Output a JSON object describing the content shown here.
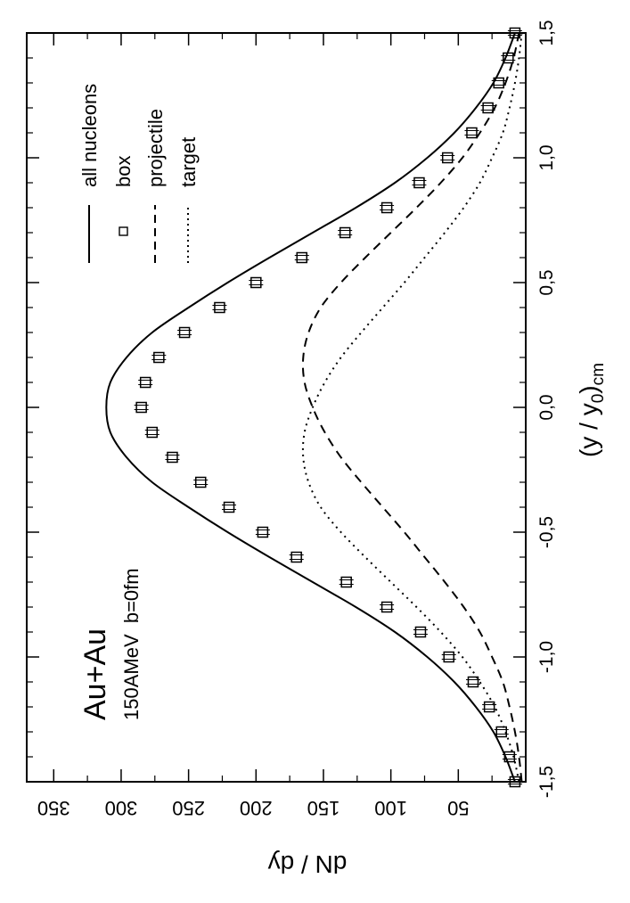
{
  "chart_data": {
    "type": "line",
    "orientation": "rotated-90-ccw",
    "xlabel_main": "(y / y",
    "xlabel_sub0": "0",
    "xlabel_paren": ")",
    "xlabel_subcm": "cm",
    "ylabel": "dN / dy",
    "xlim": [
      -1.5,
      1.5
    ],
    "ylim": [
      0,
      370
    ],
    "x_ticks": [
      {
        "value": -1.5,
        "label": "-1,5"
      },
      {
        "value": -1.0,
        "label": "-1,0"
      },
      {
        "value": -0.5,
        "label": "-0,5"
      },
      {
        "value": 0.0,
        "label": "0,0"
      },
      {
        "value": 0.5,
        "label": "0,5"
      },
      {
        "value": 1.0,
        "label": "1,0"
      },
      {
        "value": 1.5,
        "label": "1,5"
      }
    ],
    "y_ticks": [
      {
        "value": 50,
        "label": "50"
      },
      {
        "value": 100,
        "label": "100"
      },
      {
        "value": 150,
        "label": "150"
      },
      {
        "value": 200,
        "label": "200"
      },
      {
        "value": 250,
        "label": "250"
      },
      {
        "value": 300,
        "label": "300"
      },
      {
        "value": 350,
        "label": "350"
      }
    ],
    "annotation_system": "Au+Au",
    "annotation_conditions": "150AMeV  b=0fm",
    "legend": [
      {
        "label": "all nucleons",
        "style": "solid"
      },
      {
        "label": "box",
        "style": "marker"
      },
      {
        "label": "projectile",
        "style": "dashed"
      },
      {
        "label": "target",
        "style": "dotted"
      }
    ],
    "series": [
      {
        "name": "all nucleons",
        "style": "solid",
        "x": [
          -1.5,
          -1.4,
          -1.3,
          -1.2,
          -1.1,
          -1.0,
          -0.9,
          -0.8,
          -0.7,
          -0.6,
          -0.5,
          -0.4,
          -0.3,
          -0.2,
          -0.1,
          0.0,
          0.1,
          0.2,
          0.3,
          0.4,
          0.5,
          0.6,
          0.7,
          0.8,
          0.9,
          1.0,
          1.1,
          1.2,
          1.3,
          1.4,
          1.5
        ],
        "y": [
          8,
          15,
          24,
          37,
          53,
          73,
          97,
          126,
          158,
          190,
          221,
          250,
          277,
          296,
          308,
          311,
          308,
          296,
          277,
          250,
          221,
          190,
          158,
          126,
          97,
          73,
          53,
          37,
          24,
          15,
          8
        ]
      },
      {
        "name": "projectile",
        "style": "dashed",
        "x": [
          -1.5,
          -1.4,
          -1.3,
          -1.2,
          -1.1,
          -1.0,
          -0.9,
          -0.8,
          -0.7,
          -0.6,
          -0.5,
          -0.4,
          -0.3,
          -0.2,
          -0.1,
          0.0,
          0.1,
          0.2,
          0.3,
          0.4,
          0.5,
          0.6,
          0.7,
          0.8,
          0.9,
          1.0,
          1.1,
          1.2,
          1.3,
          1.4,
          1.5
        ],
        "y": [
          3,
          5,
          8,
          12,
          17,
          25,
          34,
          46,
          60,
          75,
          90,
          106,
          122,
          137,
          149,
          158,
          164,
          165,
          161,
          152,
          137,
          119,
          100,
          81,
          63,
          47,
          34,
          23,
          15,
          9,
          5
        ]
      },
      {
        "name": "target",
        "style": "dotted",
        "x": [
          -1.5,
          -1.4,
          -1.3,
          -1.2,
          -1.1,
          -1.0,
          -0.9,
          -0.8,
          -0.7,
          -0.6,
          -0.5,
          -0.4,
          -0.3,
          -0.2,
          -0.1,
          0.0,
          0.1,
          0.2,
          0.3,
          0.4,
          0.5,
          0.6,
          0.7,
          0.8,
          0.9,
          1.0,
          1.1,
          1.2,
          1.3,
          1.4,
          1.5
        ],
        "y": [
          5,
          9,
          15,
          23,
          34,
          47,
          63,
          81,
          100,
          119,
          137,
          152,
          161,
          165,
          164,
          158,
          149,
          137,
          122,
          106,
          90,
          75,
          60,
          46,
          34,
          25,
          17,
          12,
          8,
          5,
          3
        ]
      },
      {
        "name": "box",
        "style": "marker",
        "x": [
          -1.5,
          -1.4,
          -1.3,
          -1.2,
          -1.1,
          -1.0,
          -0.9,
          -0.8,
          -0.7,
          -0.6,
          -0.5,
          -0.4,
          -0.3,
          -0.2,
          -0.1,
          0.0,
          0.1,
          0.2,
          0.3,
          0.4,
          0.5,
          0.6,
          0.7,
          0.8,
          0.9,
          1.0,
          1.1,
          1.2,
          1.3,
          1.4,
          1.5
        ],
        "y": [
          8,
          12,
          18,
          27,
          39,
          57,
          78,
          103,
          133,
          170,
          195,
          220,
          241,
          262,
          277,
          285,
          282,
          272,
          253,
          227,
          200,
          166,
          134,
          103,
          79,
          58,
          40,
          28,
          20,
          13,
          8
        ]
      }
    ]
  }
}
